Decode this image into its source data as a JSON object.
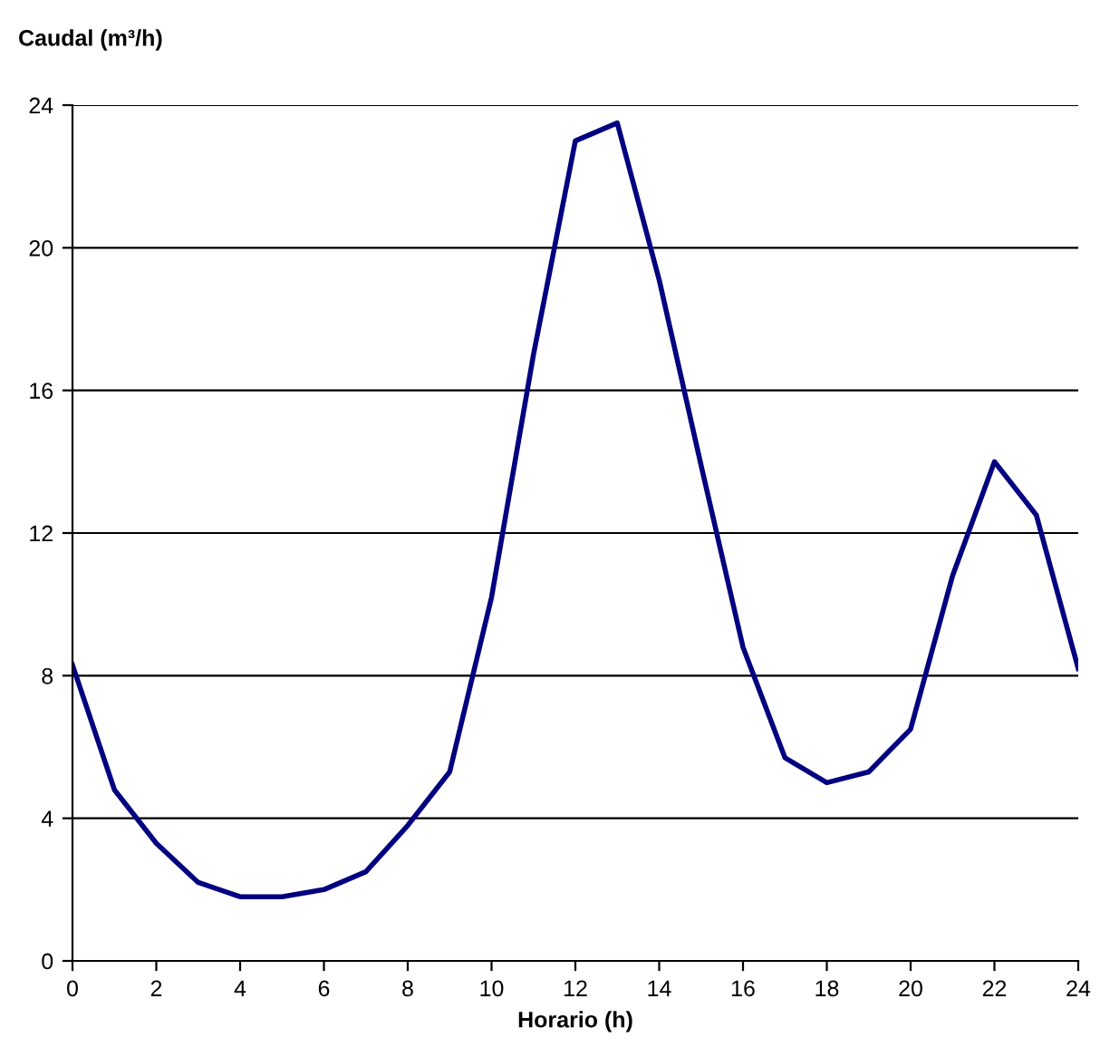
{
  "chart_data": {
    "type": "line",
    "ylabel": "Caudal (m³/h)",
    "xlabel": "Horario (h)",
    "x": [
      0,
      1,
      2,
      3,
      4,
      5,
      6,
      7,
      8,
      9,
      10,
      11,
      12,
      13,
      14,
      15,
      16,
      17,
      18,
      19,
      20,
      21,
      22,
      23,
      24
    ],
    "series": [
      {
        "color": "#000080",
        "values": [
          8.3,
          4.8,
          3.3,
          2.2,
          1.8,
          1.8,
          2.0,
          2.5,
          3.8,
          5.3,
          10.2,
          17.0,
          23.0,
          23.5,
          19.1,
          13.9,
          8.8,
          5.7,
          5.0,
          5.3,
          6.5,
          10.8,
          14.0,
          12.5,
          8.2
        ]
      }
    ],
    "xlim": [
      0,
      24
    ],
    "xticks": [
      0,
      2,
      4,
      6,
      8,
      10,
      12,
      14,
      16,
      18,
      20,
      22,
      24
    ],
    "ylim": [
      0,
      24
    ],
    "yticks": [
      0,
      4,
      8,
      12,
      16,
      20,
      24
    ],
    "grid": "y",
    "legend": false,
    "marker": "none",
    "line_style": "solid"
  }
}
